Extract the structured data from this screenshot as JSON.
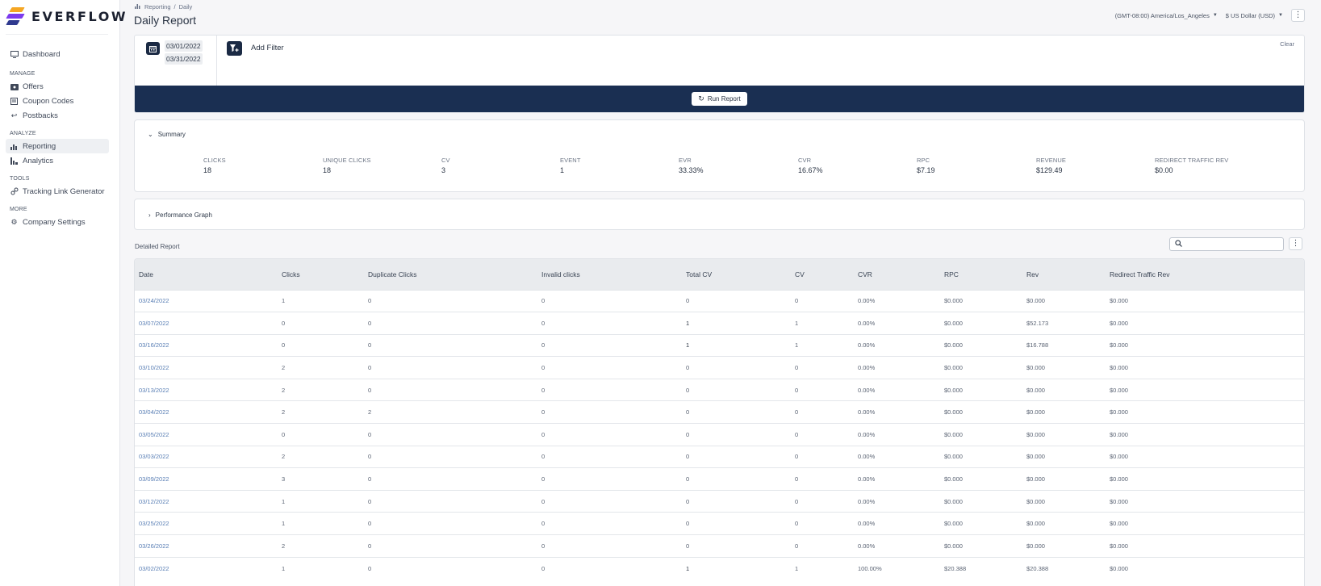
{
  "app": {
    "brand": "EVERFLOW"
  },
  "sidebar": {
    "dashboard": "Dashboard",
    "sections": [
      {
        "heading": "MANAGE",
        "items": [
          "Offers",
          "Coupon Codes",
          "Postbacks"
        ]
      },
      {
        "heading": "ANALYZE",
        "items": [
          "Reporting",
          "Analytics"
        ]
      },
      {
        "heading": "TOOLS",
        "items": [
          "Tracking Link Generator"
        ]
      },
      {
        "heading": "MORE",
        "items": [
          "Company Settings"
        ]
      }
    ],
    "active": "Reporting"
  },
  "header": {
    "breadcrumb_parent": "Reporting",
    "breadcrumb_sep": "/",
    "breadcrumb_current": "Daily",
    "title": "Daily Report",
    "timezone": "(GMT-08:00) America/Los_Angeles",
    "currency": "$ US Dollar (USD)"
  },
  "filters": {
    "date_start": "03/01/2022",
    "date_end": "03/31/2022",
    "add_filter_label": "Add Filter",
    "clear_label": "Clear",
    "run_label": "Run Report"
  },
  "summary": {
    "title": "Summary",
    "metrics": [
      {
        "label": "CLICKS",
        "value": "18"
      },
      {
        "label": "UNIQUE CLICKS",
        "value": "18"
      },
      {
        "label": "CV",
        "value": "3"
      },
      {
        "label": "EVENT",
        "value": "1"
      },
      {
        "label": "EVR",
        "value": "33.33%"
      },
      {
        "label": "CVR",
        "value": "16.67%"
      },
      {
        "label": "RPC",
        "value": "$7.19"
      },
      {
        "label": "REVENUE",
        "value": "$129.49"
      },
      {
        "label": "REDIRECT TRAFFIC REV",
        "value": "$0.00"
      }
    ]
  },
  "performance": {
    "title": "Performance Graph"
  },
  "detailed": {
    "title": "Detailed Report",
    "search_placeholder": "",
    "columns": [
      "Date",
      "Clicks",
      "Duplicate Clicks",
      "Invalid clicks",
      "Total CV",
      "CV",
      "CVR",
      "RPC",
      "Rev",
      "Redirect Traffic Rev"
    ],
    "rows": [
      [
        "03/24/2022",
        "1",
        "0",
        "0",
        "0",
        "0",
        "0.00%",
        "$0.000",
        "$0.000",
        "$0.000"
      ],
      [
        "03/07/2022",
        "0",
        "0",
        "0",
        "1",
        "1",
        "0.00%",
        "$0.000",
        "$52.173",
        "$0.000"
      ],
      [
        "03/16/2022",
        "0",
        "0",
        "0",
        "1",
        "1",
        "0.00%",
        "$0.000",
        "$16.788",
        "$0.000"
      ],
      [
        "03/10/2022",
        "2",
        "0",
        "0",
        "0",
        "0",
        "0.00%",
        "$0.000",
        "$0.000",
        "$0.000"
      ],
      [
        "03/13/2022",
        "2",
        "0",
        "0",
        "0",
        "0",
        "0.00%",
        "$0.000",
        "$0.000",
        "$0.000"
      ],
      [
        "03/04/2022",
        "2",
        "2",
        "0",
        "0",
        "0",
        "0.00%",
        "$0.000",
        "$0.000",
        "$0.000"
      ],
      [
        "03/05/2022",
        "0",
        "0",
        "0",
        "0",
        "0",
        "0.00%",
        "$0.000",
        "$0.000",
        "$0.000"
      ],
      [
        "03/03/2022",
        "2",
        "0",
        "0",
        "0",
        "0",
        "0.00%",
        "$0.000",
        "$0.000",
        "$0.000"
      ],
      [
        "03/09/2022",
        "3",
        "0",
        "0",
        "0",
        "0",
        "0.00%",
        "$0.000",
        "$0.000",
        "$0.000"
      ],
      [
        "03/12/2022",
        "1",
        "0",
        "0",
        "0",
        "0",
        "0.00%",
        "$0.000",
        "$0.000",
        "$0.000"
      ],
      [
        "03/25/2022",
        "1",
        "0",
        "0",
        "0",
        "0",
        "0.00%",
        "$0.000",
        "$0.000",
        "$0.000"
      ],
      [
        "03/26/2022",
        "2",
        "0",
        "0",
        "0",
        "0",
        "0.00%",
        "$0.000",
        "$0.000",
        "$0.000"
      ],
      [
        "03/02/2022",
        "1",
        "0",
        "0",
        "1",
        "1",
        "100.00%",
        "$20.388",
        "$20.388",
        "$0.000"
      ]
    ]
  },
  "colors": {
    "brand_navy": "#1a2f52",
    "link_blue": "#5a7fb5",
    "logo_orange": "#f5a623",
    "logo_purple": "#7c3aed"
  }
}
